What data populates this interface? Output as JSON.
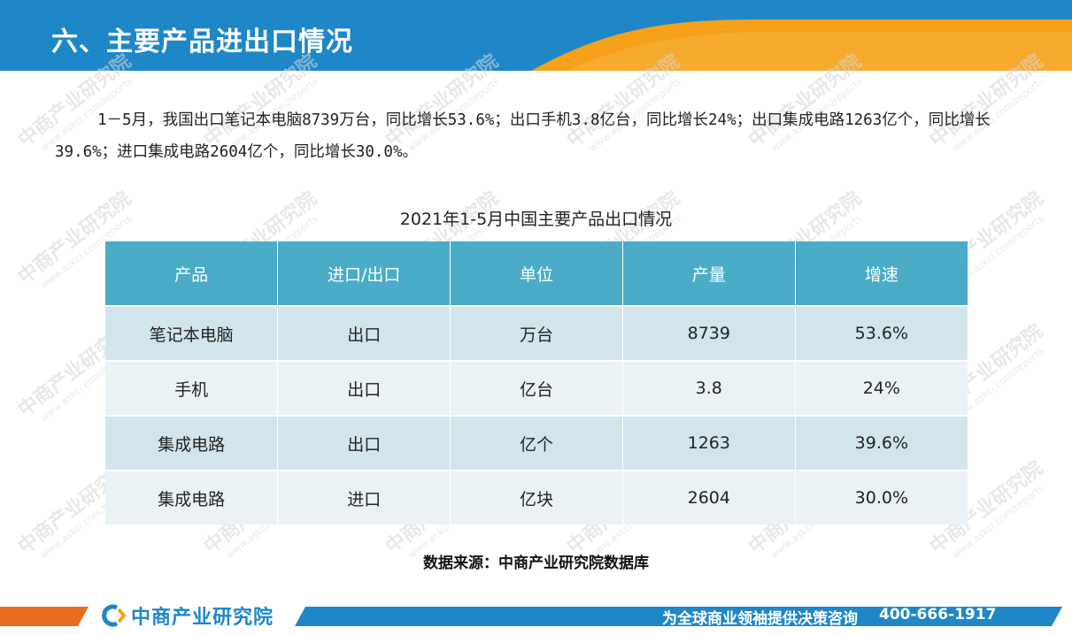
{
  "header": {
    "title": "六、主要产品进出口情况"
  },
  "paragraph": "1－5月，我国出口笔记本电脑8739万台，同比增长53.6%；出口手机3.8亿台，同比增长24%；出口集成电路1263亿个，同比增长39.6%；进口集成电路2604亿个，同比增长30.0%。",
  "table": {
    "title": "2021年1-5月中国主要产品出口情况",
    "headers": [
      "产品",
      "进口/出口",
      "单位",
      "产量",
      "增速"
    ],
    "rows": [
      [
        "笔记本电脑",
        "出口",
        "万台",
        "8739",
        "53.6%"
      ],
      [
        "手机",
        "出口",
        "亿台",
        "3.8",
        "24%"
      ],
      [
        "集成电路",
        "出口",
        "亿个",
        "1263",
        "39.6%"
      ],
      [
        "集成电路",
        "进口",
        "亿块",
        "2604",
        "30.0%"
      ]
    ]
  },
  "source": "数据来源：中商产业研究院数据库",
  "footer": {
    "logo_text": "中商产业研究院",
    "slogan": "为全球商业领袖提供决策咨询",
    "phone": "400-666-1917"
  },
  "watermark": {
    "text": "中商产业研究院",
    "sub": "www.askci.com/reports"
  },
  "colors": {
    "header_blue": "#1e87c8",
    "accent_orange": "#f5a11a",
    "table_header": "#4aacc6",
    "row_odd": "#d2e5ec",
    "row_even": "#eaf2f5",
    "footer_orange": "#e86d1f"
  }
}
